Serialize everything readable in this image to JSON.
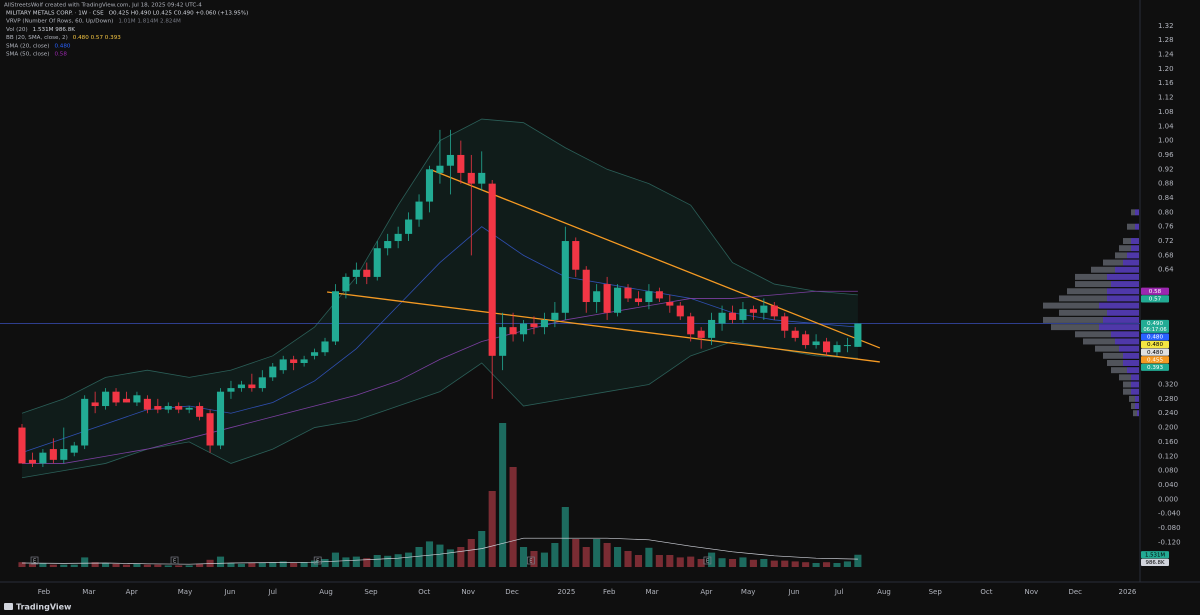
{
  "chart_data": {
    "type": "candlestick",
    "credit": "AllStreetsWolf created with TradingView.com, Jul 18, 2025 09:42 UTC-4",
    "legend": [
      {
        "name": "MILITARY METALS CORP. · 1W · CSE",
        "values": "O0.425 H0.490 L0.425 C0.490 +0.060 (+13.95%)",
        "color": "#d1d4dc"
      },
      {
        "name": "VRVP (Number Of Rows, 60, Up/Down)",
        "values": "1.01M 1.814M 2.824M",
        "color": "#787b86"
      },
      {
        "name": "Vol (20)",
        "values": "1.531M 986.8K",
        "color": "#d1d4dc"
      },
      {
        "name": "BB (20, SMA, close, 2)",
        "values": "0.480 0.57 0.393",
        "color": "#f5c542"
      },
      {
        "name": "SMA (20, close)",
        "values": "0.480",
        "color": "#2962ff"
      },
      {
        "name": "SMA (50, close)",
        "values": "0.58",
        "color": "#9c27b0"
      }
    ],
    "up_color": "#22ab94",
    "down_color": "#f23645",
    "xlim": [
      -2.105,
      107.0
    ],
    "ylim": [
      -0.225,
      1.392
    ],
    "xticks": [
      {
        "value": 2.1,
        "label": "Feb"
      },
      {
        "value": 6.4,
        "label": "Mar"
      },
      {
        "value": 10.5,
        "label": "Apr"
      },
      {
        "value": 15.6,
        "label": "May"
      },
      {
        "value": 19.9,
        "label": "Jun"
      },
      {
        "value": 24.0,
        "label": "Jul"
      },
      {
        "value": 29.1,
        "label": "Aug"
      },
      {
        "value": 33.4,
        "label": "Sep"
      },
      {
        "value": 38.5,
        "label": "Oct"
      },
      {
        "value": 42.7,
        "label": "Nov"
      },
      {
        "value": 46.9,
        "label": "Dec"
      },
      {
        "value": 52.1,
        "label": "2025"
      },
      {
        "value": 56.2,
        "label": "Feb"
      },
      {
        "value": 60.3,
        "label": "Mar"
      },
      {
        "value": 65.5,
        "label": "Apr"
      },
      {
        "value": 69.5,
        "label": "May"
      },
      {
        "value": 73.9,
        "label": "Jun"
      },
      {
        "value": 78.2,
        "label": "Jul"
      },
      {
        "value": 82.5,
        "label": "Aug"
      },
      {
        "value": 87.4,
        "label": "Sep"
      },
      {
        "value": 92.3,
        "label": "Oct"
      },
      {
        "value": 96.6,
        "label": "Nov"
      },
      {
        "value": 100.8,
        "label": "Dec"
      },
      {
        "value": 105.8,
        "label": "2026"
      }
    ],
    "yticks": [
      1.32,
      1.28,
      1.24,
      {
        "value": 1.2,
        "label": "1.20"
      },
      1.16,
      1.12,
      1.08,
      1.04,
      {
        "value": 1,
        "label": "1.00"
      },
      0.96,
      0.92,
      0.88,
      0.84,
      {
        "value": 0.8,
        "label": "0.80"
      },
      0.76,
      0.72,
      0.68,
      0.64,
      {
        "value": 0.32,
        "label": "0.320"
      },
      {
        "value": 0.28,
        "label": "0.280"
      },
      {
        "value": 0.24,
        "label": "0.240"
      },
      {
        "value": 0.2,
        "label": "0.200"
      },
      {
        "value": 0.16,
        "label": "0.160"
      },
      {
        "value": 0.12,
        "label": "0.120"
      },
      {
        "value": 0.08,
        "label": "0.080"
      },
      {
        "value": 0.04,
        "label": "0.040"
      },
      {
        "value": 0,
        "label": "0.000"
      },
      {
        "value": -0.04,
        "label": "-0.040"
      },
      {
        "value": -0.08,
        "label": "-0.080"
      },
      {
        "value": -0.12,
        "label": "-0.120"
      }
    ],
    "ohlc": {
      "open": [
        0.2,
        0.11,
        0.1,
        0.14,
        0.11,
        0.13,
        0.15,
        0.27,
        0.26,
        0.3,
        0.28,
        0.27,
        0.28,
        0.26,
        0.25,
        0.26,
        0.25,
        0.26,
        0.24,
        0.15,
        0.3,
        0.31,
        0.32,
        0.31,
        0.34,
        0.36,
        0.39,
        0.38,
        0.4,
        0.41,
        0.44,
        0.58,
        0.62,
        0.64,
        0.62,
        0.7,
        0.72,
        0.74,
        0.78,
        0.83,
        0.91,
        0.93,
        0.96,
        0.91,
        0.88,
        0.88,
        0.4,
        0.48,
        0.46,
        0.49,
        0.48,
        0.5,
        0.52,
        0.72,
        0.64,
        0.55,
        0.6,
        0.52,
        0.59,
        0.56,
        0.55,
        0.58,
        0.55,
        0.54,
        0.51,
        0.47,
        0.45,
        0.49,
        0.52,
        0.5,
        0.53,
        0.52,
        0.54,
        0.51,
        0.47,
        0.46,
        0.43,
        0.44,
        0.41,
        0.43,
        0.425
      ],
      "high": [
        0.21,
        0.13,
        0.14,
        0.17,
        0.2,
        0.16,
        0.29,
        0.3,
        0.31,
        0.31,
        0.3,
        0.3,
        0.29,
        0.28,
        0.27,
        0.27,
        0.26,
        0.27,
        0.25,
        0.31,
        0.33,
        0.33,
        0.35,
        0.36,
        0.38,
        0.4,
        0.4,
        0.4,
        0.42,
        0.45,
        0.6,
        0.63,
        0.66,
        0.66,
        0.72,
        0.74,
        0.76,
        0.8,
        0.85,
        0.93,
        1.03,
        1.03,
        1.0,
        0.96,
        0.97,
        0.89,
        0.52,
        0.52,
        0.5,
        0.51,
        0.52,
        0.55,
        0.76,
        0.73,
        0.65,
        0.6,
        0.62,
        0.6,
        0.6,
        0.58,
        0.6,
        0.59,
        0.57,
        0.55,
        0.52,
        0.48,
        0.52,
        0.54,
        0.54,
        0.55,
        0.54,
        0.56,
        0.55,
        0.52,
        0.48,
        0.47,
        0.46,
        0.45,
        0.44,
        0.45,
        0.49
      ],
      "low": [
        0.1,
        0.09,
        0.09,
        0.1,
        0.1,
        0.12,
        0.14,
        0.24,
        0.25,
        0.26,
        0.27,
        0.26,
        0.24,
        0.24,
        0.24,
        0.24,
        0.24,
        0.22,
        0.13,
        0.14,
        0.28,
        0.3,
        0.3,
        0.3,
        0.33,
        0.35,
        0.36,
        0.37,
        0.39,
        0.4,
        0.43,
        0.56,
        0.6,
        0.6,
        0.61,
        0.68,
        0.7,
        0.72,
        0.76,
        0.8,
        0.88,
        0.85,
        0.88,
        0.68,
        0.86,
        0.28,
        0.36,
        0.44,
        0.44,
        0.46,
        0.46,
        0.48,
        0.5,
        0.62,
        0.52,
        0.52,
        0.5,
        0.51,
        0.55,
        0.54,
        0.53,
        0.55,
        0.52,
        0.5,
        0.44,
        0.42,
        0.43,
        0.47,
        0.49,
        0.49,
        0.5,
        0.5,
        0.5,
        0.45,
        0.44,
        0.42,
        0.42,
        0.4,
        0.4,
        0.41,
        0.425
      ],
      "close": [
        0.1,
        0.1,
        0.13,
        0.11,
        0.14,
        0.15,
        0.28,
        0.26,
        0.3,
        0.27,
        0.27,
        0.29,
        0.25,
        0.25,
        0.26,
        0.25,
        0.255,
        0.23,
        0.15,
        0.3,
        0.31,
        0.32,
        0.31,
        0.34,
        0.37,
        0.39,
        0.38,
        0.39,
        0.41,
        0.44,
        0.58,
        0.62,
        0.64,
        0.62,
        0.7,
        0.72,
        0.74,
        0.78,
        0.83,
        0.92,
        0.93,
        0.96,
        0.91,
        0.88,
        0.91,
        0.4,
        0.48,
        0.46,
        0.49,
        0.48,
        0.5,
        0.52,
        0.72,
        0.64,
        0.55,
        0.58,
        0.52,
        0.59,
        0.56,
        0.55,
        0.58,
        0.56,
        0.54,
        0.51,
        0.46,
        0.45,
        0.5,
        0.52,
        0.5,
        0.53,
        0.52,
        0.54,
        0.51,
        0.47,
        0.45,
        0.43,
        0.44,
        0.41,
        0.43,
        0.43,
        0.49
      ]
    },
    "volume": {
      "ylim": [
        0,
        20000000
      ],
      "up_color": "#1d6b5f",
      "down_color": "#7a2c33",
      "values": [
        600000,
        400000,
        500000,
        300000,
        300000,
        300000,
        1200000,
        600000,
        500000,
        400000,
        300000,
        400000,
        300000,
        300000,
        200000,
        200000,
        200000,
        400000,
        900000,
        1300000,
        500000,
        400000,
        500000,
        500000,
        600000,
        700000,
        500000,
        600000,
        800000,
        1000000,
        1800000,
        1200000,
        1300000,
        1100000,
        1500000,
        1400000,
        1600000,
        1800000,
        2500000,
        3200000,
        2800000,
        2200000,
        2500000,
        3500000,
        4500000,
        9500000,
        18000000,
        12500000,
        2500000,
        2000000,
        1800000,
        3000000,
        7500000,
        3500000,
        2500000,
        3500000,
        3000000,
        2500000,
        2000000,
        1500000,
        2400000,
        1500000,
        1500000,
        1200000,
        1300000,
        1000000,
        1800000,
        1100000,
        1000000,
        1200000,
        900000,
        1000000,
        800000,
        800000,
        700000,
        600000,
        500000,
        600000,
        500000,
        700000,
        1531000
      ],
      "sma": {
        "color": "#d1d4dc",
        "x": [
          0,
          4,
          8,
          12,
          16,
          20,
          24,
          28,
          32,
          36,
          40,
          44,
          48,
          52,
          56,
          60,
          64,
          68,
          72,
          76,
          80
        ],
        "values": [
          500000,
          450000,
          500000,
          400000,
          350000,
          500000,
          550000,
          600000,
          850000,
          1100000,
          1600000,
          2300000,
          3600000,
          3600000,
          3600000,
          3400000,
          2600000,
          1900000,
          1400000,
          1100000,
          986800
        ]
      },
      "tags": [
        {
          "value": 1531000,
          "label": "1.531M",
          "color": "#22ab94"
        },
        {
          "value": 986800,
          "label": "986.8K",
          "color": "#d1d4dc"
        }
      ]
    },
    "indicators": {
      "x": [
        0,
        4,
        8,
        12,
        16,
        20,
        24,
        28,
        32,
        36,
        40,
        44,
        48,
        52,
        56,
        60,
        64,
        68,
        72,
        76,
        80
      ],
      "bb": {
        "color": "#2b5f58",
        "fill": "#22ab94",
        "upper": [
          0.24,
          0.28,
          0.34,
          0.36,
          0.34,
          0.36,
          0.4,
          0.48,
          0.62,
          0.82,
          1.0,
          1.06,
          1.05,
          0.98,
          0.92,
          0.88,
          0.82,
          0.66,
          0.6,
          0.58,
          0.57
        ],
        "lower": [
          0.06,
          0.08,
          0.1,
          0.14,
          0.16,
          0.1,
          0.14,
          0.2,
          0.22,
          0.26,
          0.3,
          0.38,
          0.26,
          0.28,
          0.3,
          0.32,
          0.4,
          0.44,
          0.42,
          0.4,
          0.393
        ]
      },
      "sma": [
        {
          "color": "#2f4fb0",
          "values": [
            0.13,
            0.17,
            0.21,
            0.25,
            0.26,
            0.24,
            0.27,
            0.33,
            0.42,
            0.54,
            0.66,
            0.76,
            0.68,
            0.62,
            0.6,
            0.58,
            0.56,
            0.52,
            0.5,
            0.49,
            0.48
          ]
        },
        {
          "color": "#7b3fa0",
          "values": [
            0.1,
            0.1,
            0.12,
            0.14,
            0.17,
            0.2,
            0.23,
            0.26,
            0.29,
            0.33,
            0.39,
            0.44,
            0.47,
            0.5,
            0.52,
            0.54,
            0.56,
            0.56,
            0.57,
            0.58,
            0.58
          ]
        }
      ]
    },
    "trendlines": [
      {
        "color": "#f59a23",
        "x": [
          39.2,
          82.1
        ],
        "y": [
          0.918,
          0.422
        ]
      },
      {
        "color": "#f59a23",
        "x": [
          29.2,
          82.1
        ],
        "y": [
          0.578,
          0.383
        ]
      }
    ],
    "price_line_color": "#3a4fb8",
    "events": [
      {
        "x": 1.2,
        "label": "E"
      },
      {
        "x": 14.6,
        "label": "E"
      },
      {
        "x": 28.3,
        "label": "E"
      },
      {
        "x": 48.7,
        "label": "E"
      },
      {
        "x": 65.6,
        "label": "E"
      }
    ],
    "vrvp": {
      "xlim": [
        0,
        25
      ],
      "up_color": "#5b3fc4",
      "down_color": "#5d6068",
      "rows": [
        0.8,
        0.76,
        0.72,
        0.7,
        0.68,
        0.66,
        0.64,
        0.62,
        0.6,
        0.58,
        0.56,
        0.54,
        0.52,
        0.5,
        0.48,
        0.46,
        0.44,
        0.42,
        0.4,
        0.38,
        0.36,
        0.34,
        0.32,
        0.3,
        0.28,
        0.26,
        0.24
      ],
      "up": [
        1,
        1,
        2,
        2,
        3,
        4,
        6,
        8,
        7,
        8,
        8,
        10,
        8,
        9,
        10,
        7,
        6,
        5,
        4,
        4,
        3,
        2,
        2,
        2,
        1,
        1,
        0.5
      ],
      "down": [
        1,
        2,
        2,
        3,
        3,
        5,
        6,
        8,
        9,
        10,
        12,
        14,
        12,
        15,
        12,
        9,
        8,
        6,
        5,
        4,
        4,
        3,
        2,
        2,
        1.5,
        1,
        1
      ]
    },
    "price_tags": [
      {
        "value": 0.58,
        "color": "#9c27b0",
        "text_color": "#ffffff"
      },
      {
        "value": 0.57,
        "color": "#22ab94",
        "text_color": "#ffffff"
      },
      {
        "value": 0.49,
        "label": "0.490",
        "color": "#22ab94",
        "text_color": "#ffffff",
        "countdown": "06:17:06"
      },
      {
        "value": 0.48,
        "label": "0.480",
        "color": "#2962ff",
        "text_color": "#ffffff"
      },
      {
        "value": 0.48,
        "label": "0.480",
        "color": "#f5e642",
        "text_color": "#000000"
      },
      {
        "value": 0.48,
        "label": "0.480",
        "color": "#e0e0e0",
        "text_color": "#000000"
      },
      {
        "value": 0.455,
        "color": "#f59a23",
        "text_color": "#ffffff"
      },
      {
        "value": 0.393,
        "color": "#22ab94",
        "text_color": "#ffffff"
      }
    ],
    "brand": "TradingView"
  }
}
